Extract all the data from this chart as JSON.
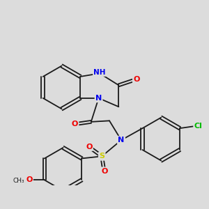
{
  "background_color": "#dcdcdc",
  "bond_color": "#1a1a1a",
  "atom_colors": {
    "N": "#0000ee",
    "O": "#ee0000",
    "S": "#cccc00",
    "Cl": "#00bb00",
    "C": "#1a1a1a",
    "H": "#888888"
  },
  "figsize": [
    3.0,
    3.0
  ],
  "dpi": 100,
  "lw": 1.3,
  "doff": 0.055,
  "fs": 8.0,
  "r": 0.88
}
